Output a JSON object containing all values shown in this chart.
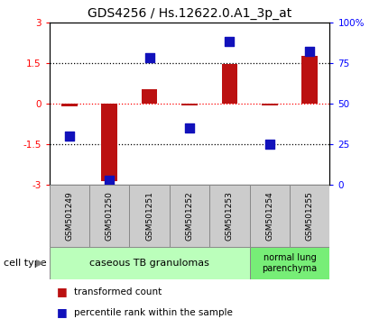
{
  "title": "GDS4256 / Hs.12622.0.A1_3p_at",
  "samples": [
    "GSM501249",
    "GSM501250",
    "GSM501251",
    "GSM501252",
    "GSM501253",
    "GSM501254",
    "GSM501255"
  ],
  "red_values": [
    -0.1,
    -2.85,
    0.55,
    -0.05,
    1.45,
    -0.08,
    1.75
  ],
  "blue_values": [
    30,
    3,
    78,
    35,
    88,
    25,
    82
  ],
  "ylim_left": [
    -3,
    3
  ],
  "ylim_right": [
    0,
    100
  ],
  "yticks_left": [
    -3,
    -1.5,
    0,
    1.5,
    3
  ],
  "yticks_right": [
    0,
    25,
    50,
    75,
    100
  ],
  "ytick_labels_left": [
    "-3",
    "-1.5",
    "0",
    "1.5",
    "3"
  ],
  "ytick_labels_right": [
    "0",
    "25",
    "50",
    "75",
    "100%"
  ],
  "cell_type_label": "cell type",
  "group1_label": "caseous TB granulomas",
  "group2_label": "normal lung\nparenchyma",
  "group1_count": 5,
  "group2_count": 2,
  "legend_red": "transformed count",
  "legend_blue": "percentile rank within the sample",
  "bar_color": "#bb1111",
  "dot_color": "#1111bb",
  "sample_box_color": "#cccccc",
  "group1_color": "#bbffbb",
  "group2_color": "#77ee77",
  "box_edge_color": "#888888",
  "bar_width": 0.4,
  "dot_size": 45,
  "title_fontsize": 10,
  "tick_fontsize": 7.5,
  "label_fontsize": 8
}
